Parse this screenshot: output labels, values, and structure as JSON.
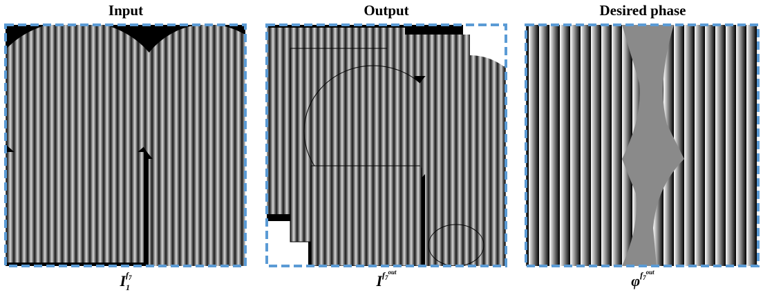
{
  "panels": [
    {
      "title": "Input",
      "caption": {
        "base": "I",
        "sub": "1",
        "sup": "f",
        "sup_sub": "7"
      }
    },
    {
      "title": "Output",
      "caption": {
        "base": "I",
        "sup": "f",
        "sup_sub": "7",
        "sup_sup": "out"
      }
    },
    {
      "title": "Desired phase",
      "caption": {
        "base": "φ",
        "sup": "f",
        "sup_sub": "7",
        "sup_sup": "out"
      }
    }
  ]
}
